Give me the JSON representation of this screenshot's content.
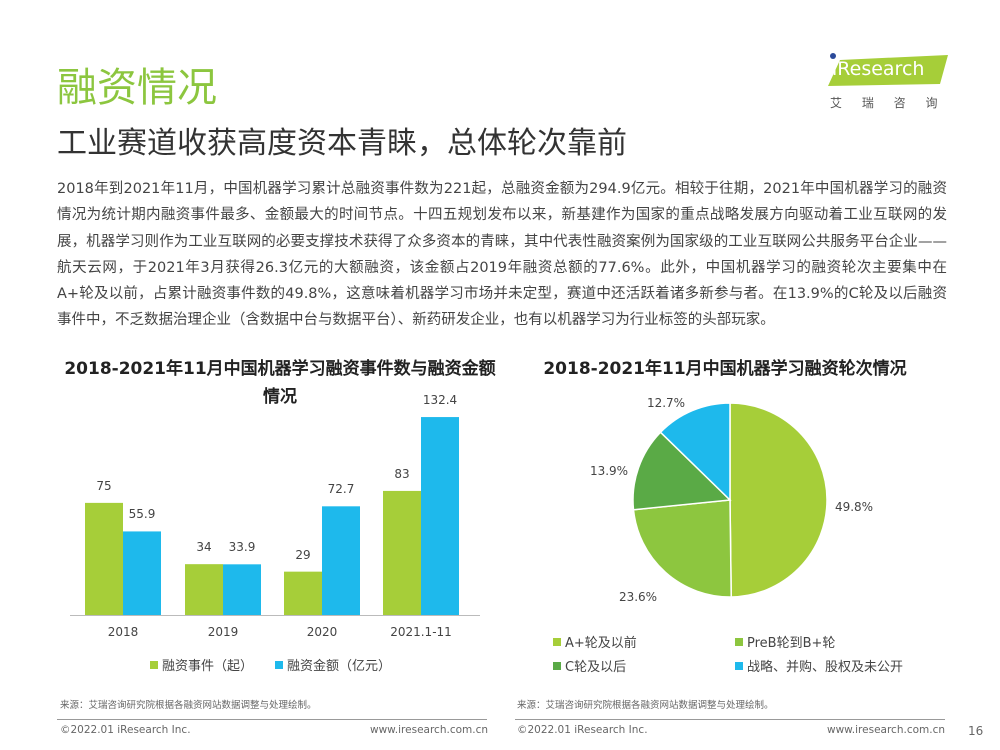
{
  "header": {
    "title": "融资情况",
    "subtitle": "工业赛道收获高度资本青睐，总体轮次靠前",
    "logo_text": "iResearch",
    "logo_cn": "艾 瑞 咨 询"
  },
  "body_text": "2018年到2021年11月，中国机器学习累计总融资事件数为221起，总融资金额为294.9亿元。相较于往期，2021年中国机器学习的融资情况为统计期内融资事件最多、金额最大的时间节点。十四五规划发布以来，新基建作为国家的重点战略发展方向驱动着工业互联网的发展，机器学习则作为工业互联网的必要支撑技术获得了众多资本的青睐，其中代表性融资案例为国家级的工业互联网公共服务平台企业——航天云网，于2021年3月获得26.3亿元的大额融资，该金额占2019年融资总额的77.6%。此外，中国机器学习的融资轮次主要集中在A+轮及以前，占累计融资事件数的49.8%，这意味着机器学习市场并未定型，赛道中还活跃着诸多新参与者。在13.9%的C轮及以后融资事件中，不乏数据治理企业（含数据中台与数据平台）、新药研发企业，也有以机器学习为行业标签的头部玩家。",
  "chart_data": [
    {
      "type": "bar",
      "title": "2018-2021年11月中国机器学习融资事件数与融资金额情况",
      "categories": [
        "2018",
        "2019",
        "2020",
        "2021.1-11"
      ],
      "series": [
        {
          "name": "融资事件（起）",
          "values": [
            75,
            34,
            29,
            83
          ],
          "color": "#a6ce39"
        },
        {
          "name": "融资金额（亿元）",
          "values": [
            55.9,
            33.9,
            72.7,
            132.4
          ],
          "color": "#1eb9ec"
        }
      ],
      "source": "来源：艾瑞咨询研究院根据各融资网站数据调整与处理绘制。"
    },
    {
      "type": "pie",
      "title": "2018-2021年11月中国机器学习融资轮次情况",
      "slices": [
        {
          "name": "A+轮及以前",
          "value": 49.8,
          "label": "49.8%",
          "color": "#a6ce39"
        },
        {
          "name": "PreB轮到B+轮",
          "value": 23.6,
          "label": "23.6%",
          "color": "#8dc63f"
        },
        {
          "name": "C轮及以后",
          "value": 13.9,
          "label": "13.9%",
          "color": "#5aaa46"
        },
        {
          "name": "战略、并购、股权及未公开",
          "value": 12.7,
          "label": "12.7%",
          "color": "#1eb9ec"
        }
      ],
      "source": "来源：艾瑞咨询研究院根据各融资网站数据调整与处理绘制。"
    }
  ],
  "footer": {
    "copyright": "©2022.01 iResearch Inc.",
    "url": "www.iresearch.com.cn",
    "page": "16"
  }
}
